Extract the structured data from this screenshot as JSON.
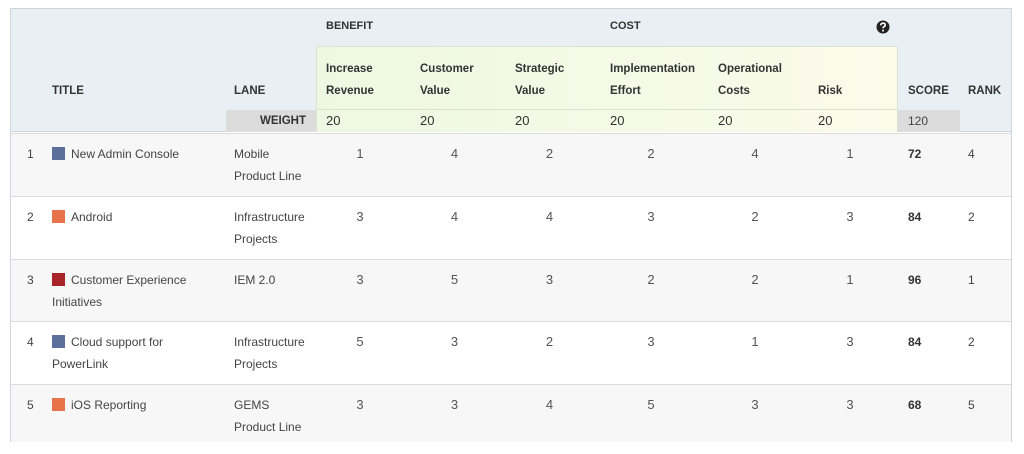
{
  "header": {
    "groups": [
      "BENEFIT",
      "COST"
    ],
    "columns": [
      "TITLE",
      "LANE",
      "Increase Revenue",
      "Customer Value",
      "Strategic Value",
      "Implementation Effort",
      "Operational Costs",
      "Risk",
      "SCORE",
      "RANK"
    ],
    "weight_label": "WEIGHT",
    "weights": [
      20,
      20,
      20,
      20,
      20,
      20
    ],
    "weight_total": 120
  },
  "rows": [
    {
      "number": 1,
      "color": "#5b6f9a",
      "title": "New Admin Console",
      "lane": "Mobile Product Line",
      "values": [
        1,
        4,
        2,
        2,
        4,
        1
      ],
      "score": 72,
      "rank": 4
    },
    {
      "number": 2,
      "color": "#e8734a",
      "title": "Android",
      "lane": "Infrastructure Projects",
      "values": [
        3,
        4,
        4,
        3,
        2,
        3
      ],
      "score": 84,
      "rank": 2
    },
    {
      "number": 3,
      "color": "#a8262a",
      "title": "Customer Experience Initiatives",
      "lane": "IEM 2.0",
      "values": [
        3,
        5,
        3,
        2,
        2,
        1
      ],
      "score": 96,
      "rank": 1
    },
    {
      "number": 4,
      "color": "#5b6f9a",
      "title": "Cloud support for PowerLink",
      "lane": "Infrastructure Projects",
      "values": [
        5,
        3,
        2,
        3,
        1,
        3
      ],
      "score": 84,
      "rank": 2
    },
    {
      "number": 5,
      "color": "#e8734a",
      "title": "iOS Reporting",
      "lane": "GEMS Product Line",
      "values": [
        3,
        3,
        4,
        5,
        3,
        3
      ],
      "score": 68,
      "rank": 5
    }
  ]
}
